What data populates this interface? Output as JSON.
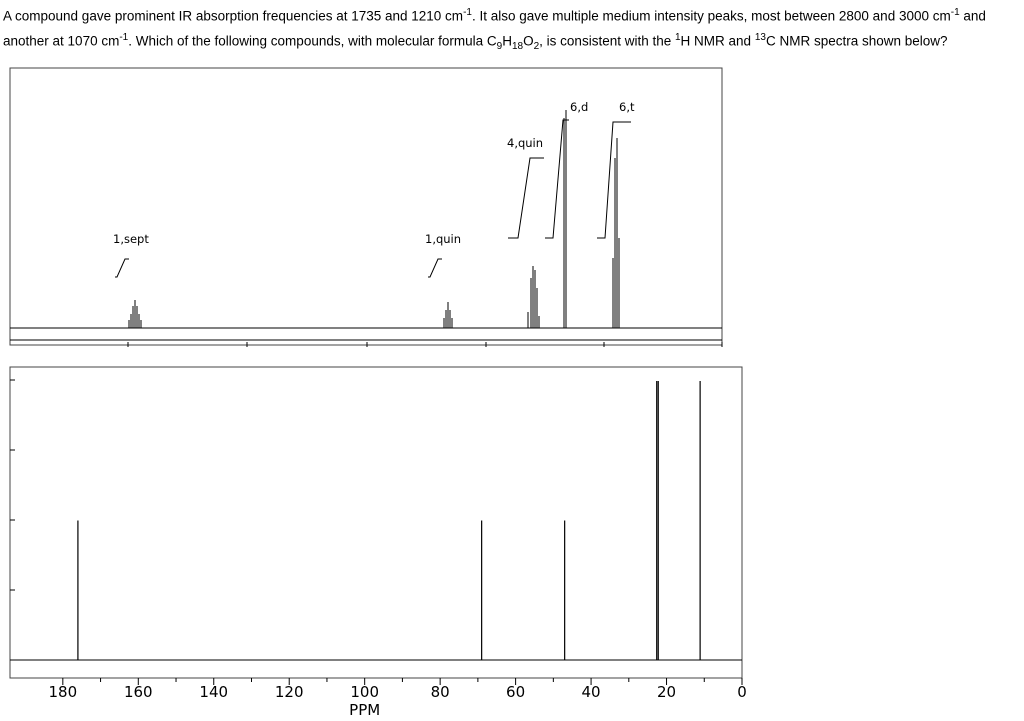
{
  "question": [
    {
      "text": "A compound gave prominent  IR absorption frequencies at 1735 and 1210 cm",
      "pos": "normal"
    },
    {
      "text": "-1",
      "pos": "sup"
    },
    {
      "text": ". It also gave multiple medium intensity peaks, most between 2800 and 3000 cm",
      "pos": "normal"
    },
    {
      "text": "-1",
      "pos": "sup"
    },
    {
      "text": " and another at 1070 cm",
      "pos": "normal"
    },
    {
      "text": "-1",
      "pos": "sup"
    },
    {
      "text": ".  Which of the following compounds, with molecular formula C",
      "pos": "normal"
    },
    {
      "text": "9",
      "pos": "sub"
    },
    {
      "text": "H",
      "pos": "normal"
    },
    {
      "text": "18",
      "pos": "sub"
    },
    {
      "text": "O",
      "pos": "normal"
    },
    {
      "text": "2",
      "pos": "sub"
    },
    {
      "text": ", is consistent with the ",
      "pos": "normal"
    },
    {
      "text": "1",
      "pos": "sup"
    },
    {
      "text": "H NMR and ",
      "pos": "normal"
    },
    {
      "text": "13",
      "pos": "sup"
    },
    {
      "text": "C NMR spectra shown below?",
      "pos": "normal"
    }
  ],
  "h_nmr": {
    "labels": [
      "1,sept",
      "1,quin",
      "4,quin",
      "6,d",
      "6,t"
    ]
  },
  "c_nmr": {
    "xlim": [
      194,
      0
    ],
    "ylim": [
      0,
      1.05
    ],
    "xticks": [
      180,
      160,
      140,
      120,
      100,
      80,
      60,
      40,
      20,
      0
    ],
    "xlabel": "PPM",
    "peaks": [
      176,
      69,
      47,
      22.6,
      22.2,
      11.1
    ],
    "intensities": [
      0.5,
      0.5,
      0.5,
      1,
      1,
      1
    ]
  }
}
